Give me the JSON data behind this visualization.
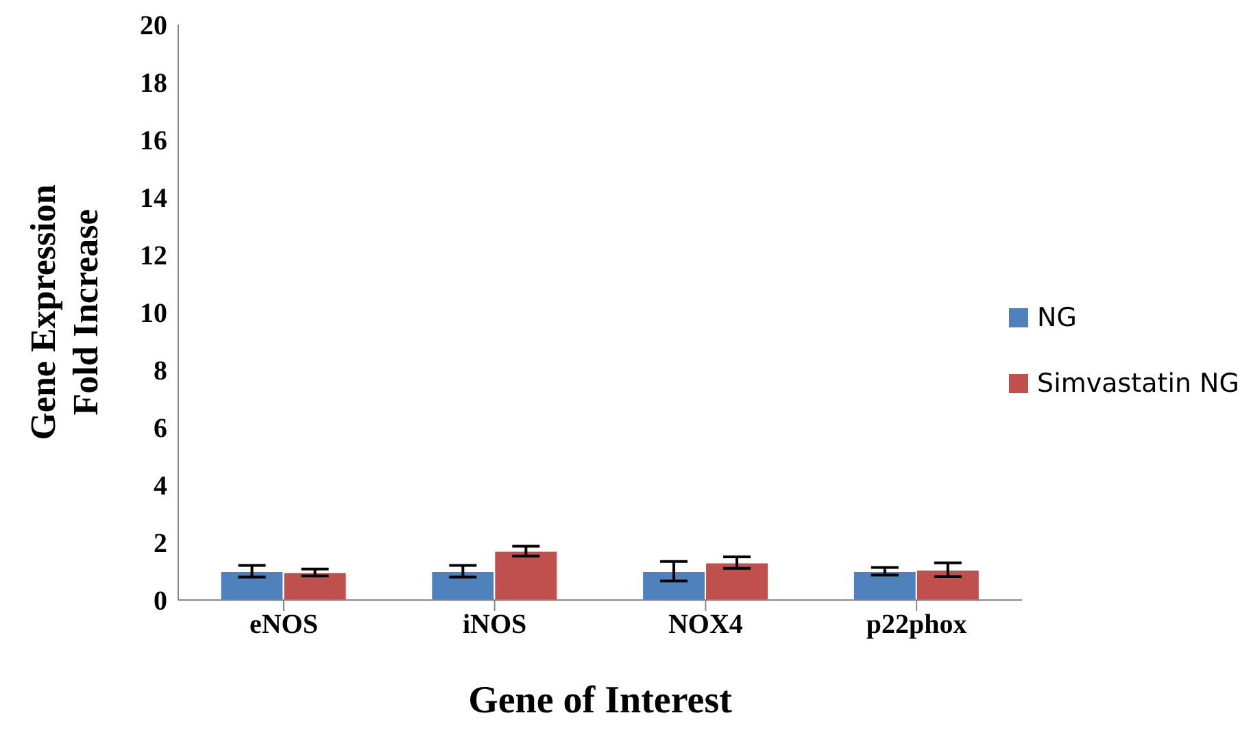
{
  "chart_data": {
    "type": "bar",
    "xlabel": "Gene of Interest",
    "ylabel": "Gene Expression Fold Increase",
    "categories": [
      "eNOS",
      "iNOS",
      "NOX4",
      "p22phox"
    ],
    "series": [
      {
        "name": "NG",
        "color": "#4f81bd",
        "values": [
          1.0,
          1.0,
          1.0,
          1.0
        ],
        "errors": [
          0.2,
          0.2,
          0.34,
          0.13
        ]
      },
      {
        "name": "Simvastatin NG",
        "color": "#c0504d",
        "values": [
          0.96,
          1.7,
          1.3,
          1.05
        ],
        "errors": [
          0.12,
          0.17,
          0.2,
          0.24
        ]
      }
    ],
    "ylim": [
      0,
      20
    ],
    "yticks": [
      0,
      2,
      4,
      6,
      8,
      10,
      12,
      14,
      16,
      18,
      20
    ],
    "grid": false,
    "legend": "right"
  }
}
